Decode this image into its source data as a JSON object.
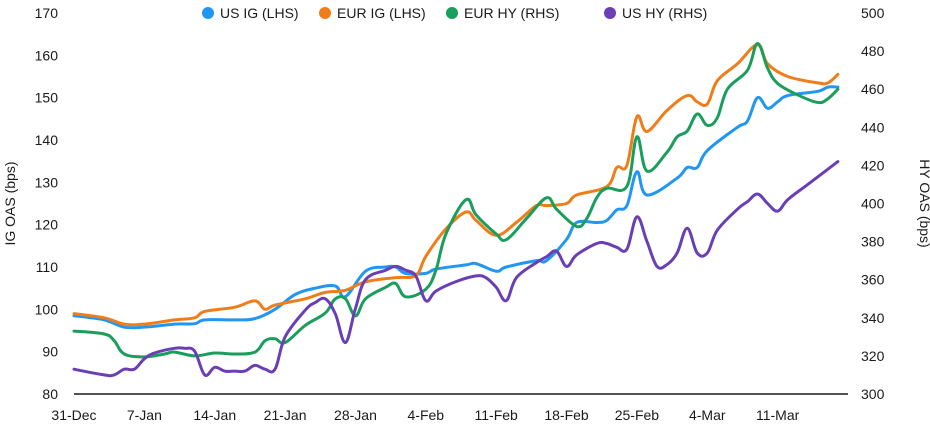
{
  "chart_data": {
    "type": "line",
    "x_labels": [
      "31-Dec",
      "7-Jan",
      "14-Jan",
      "21-Jan",
      "28-Jan",
      "4-Feb",
      "11-Feb",
      "18-Feb",
      "25-Feb",
      "4-Mar",
      "11-Mar"
    ],
    "x_range_days": [
      0,
      77
    ],
    "y_left": {
      "label": "IG OAS (bps)",
      "min": 80,
      "max": 170,
      "ticks": [
        80,
        90,
        100,
        110,
        120,
        130,
        140,
        150,
        160,
        170
      ]
    },
    "y_right": {
      "label": "HY OAS (bps)",
      "min": 300,
      "max": 500,
      "ticks": [
        300,
        320,
        340,
        360,
        380,
        400,
        420,
        440,
        460,
        480,
        500
      ]
    },
    "grid": false,
    "legend_position": "top",
    "series": [
      {
        "name": "US IG (LHS)",
        "axis": "left",
        "color": "#2196F3",
        "points": [
          [
            0,
            98.5
          ],
          [
            3,
            97.5
          ],
          [
            5,
            95.8
          ],
          [
            7,
            95.8
          ],
          [
            10,
            96.5
          ],
          [
            12,
            96.6
          ],
          [
            13,
            97.5
          ],
          [
            16,
            97.5
          ],
          [
            18,
            97.8
          ],
          [
            20,
            100
          ],
          [
            22,
            103.5
          ],
          [
            24,
            105
          ],
          [
            26,
            105.5
          ],
          [
            27,
            103
          ],
          [
            29,
            109
          ],
          [
            31,
            110
          ],
          [
            32,
            110
          ],
          [
            33,
            108.5
          ],
          [
            35,
            108.5
          ],
          [
            36,
            109.5
          ],
          [
            39,
            110.5
          ],
          [
            40,
            110.8
          ],
          [
            42,
            109
          ],
          [
            43,
            110
          ],
          [
            46,
            111.5
          ],
          [
            47,
            111.5
          ],
          [
            49,
            116.5
          ],
          [
            50,
            120.5
          ],
          [
            52,
            120.5
          ],
          [
            53,
            121
          ],
          [
            54,
            123.5
          ],
          [
            55,
            124.5
          ],
          [
            56,
            132.5
          ],
          [
            57,
            127
          ],
          [
            60,
            131
          ],
          [
            61,
            133.5
          ],
          [
            62,
            133.5
          ],
          [
            63,
            137.5
          ],
          [
            66,
            143
          ],
          [
            67,
            144.5
          ],
          [
            68,
            150
          ],
          [
            69,
            147.5
          ],
          [
            70,
            149
          ],
          [
            71,
            150.5
          ],
          [
            74,
            151.5
          ],
          [
            75,
            152.5
          ],
          [
            76,
            152.5
          ]
        ]
      },
      {
        "name": "EUR IG (LHS)",
        "axis": "left",
        "color": "#EF7D1A",
        "points": [
          [
            0,
            99
          ],
          [
            3,
            98
          ],
          [
            5,
            96.5
          ],
          [
            7,
            96.5
          ],
          [
            10,
            97.5
          ],
          [
            12,
            98
          ],
          [
            13,
            99.5
          ],
          [
            16,
            100.5
          ],
          [
            18,
            102
          ],
          [
            19,
            100
          ],
          [
            20,
            101
          ],
          [
            23,
            102.5
          ],
          [
            25,
            104
          ],
          [
            27,
            104.5
          ],
          [
            29,
            106.5
          ],
          [
            32,
            107.5
          ],
          [
            34,
            108
          ],
          [
            35,
            112.5
          ],
          [
            37,
            119
          ],
          [
            39,
            123
          ],
          [
            40,
            121
          ],
          [
            42,
            117.5
          ],
          [
            44,
            120.5
          ],
          [
            46,
            124.5
          ],
          [
            47,
            124.5
          ],
          [
            49,
            125
          ],
          [
            50,
            127
          ],
          [
            53,
            129
          ],
          [
            54,
            133.5
          ],
          [
            55,
            134
          ],
          [
            56,
            145.5
          ],
          [
            57,
            142
          ],
          [
            59,
            147
          ],
          [
            61,
            150.5
          ],
          [
            62,
            149
          ],
          [
            63,
            148.5
          ],
          [
            64,
            154
          ],
          [
            66,
            158
          ],
          [
            68,
            162.5
          ],
          [
            69,
            158
          ],
          [
            71,
            155
          ],
          [
            74,
            153.5
          ],
          [
            75,
            153.5
          ],
          [
            76,
            155.5
          ]
        ]
      },
      {
        "name": "EUR HY (RHS)",
        "axis": "right",
        "color": "#1A9E5C",
        "points": [
          [
            0,
            333
          ],
          [
            3,
            331.5
          ],
          [
            4,
            328
          ],
          [
            5,
            321
          ],
          [
            7,
            319.5
          ],
          [
            9,
            321
          ],
          [
            10,
            322
          ],
          [
            12,
            320
          ],
          [
            14,
            321.5
          ],
          [
            16,
            321
          ],
          [
            18,
            322
          ],
          [
            19,
            328
          ],
          [
            20,
            329
          ],
          [
            21,
            327
          ],
          [
            23,
            336
          ],
          [
            25,
            342.5
          ],
          [
            26,
            350
          ],
          [
            27,
            350
          ],
          [
            28,
            341
          ],
          [
            29,
            350
          ],
          [
            31,
            356
          ],
          [
            32,
            358
          ],
          [
            33,
            351
          ],
          [
            35,
            355
          ],
          [
            36,
            365
          ],
          [
            37,
            384
          ],
          [
            39,
            402
          ],
          [
            40,
            394
          ],
          [
            42,
            384
          ],
          [
            43,
            381
          ],
          [
            45,
            392
          ],
          [
            47,
            403
          ],
          [
            48,
            397
          ],
          [
            50,
            388
          ],
          [
            51,
            392
          ],
          [
            52,
            403
          ],
          [
            53,
            408
          ],
          [
            55,
            409
          ],
          [
            56,
            435
          ],
          [
            57,
            417
          ],
          [
            59,
            427
          ],
          [
            60,
            435
          ],
          [
            61,
            438
          ],
          [
            62,
            447
          ],
          [
            63,
            441
          ],
          [
            64,
            445
          ],
          [
            65,
            460
          ],
          [
            67,
            470
          ],
          [
            68,
            484
          ],
          [
            69,
            471
          ],
          [
            70,
            463
          ],
          [
            72,
            457
          ],
          [
            74,
            453
          ],
          [
            75,
            455
          ],
          [
            76,
            460
          ]
        ]
      },
      {
        "name": "US HY (RHS)",
        "axis": "right",
        "color": "#6A3FB5",
        "points": [
          [
            0,
            313
          ],
          [
            3,
            310
          ],
          [
            4,
            310
          ],
          [
            5,
            313
          ],
          [
            6,
            313
          ],
          [
            7,
            318.5
          ],
          [
            8,
            321.5
          ],
          [
            10,
            324
          ],
          [
            11,
            324
          ],
          [
            12,
            322.5
          ],
          [
            13,
            310
          ],
          [
            14,
            314
          ],
          [
            15,
            312
          ],
          [
            16,
            312
          ],
          [
            17,
            312
          ],
          [
            18,
            315
          ],
          [
            19,
            313
          ],
          [
            20,
            313
          ],
          [
            21,
            330
          ],
          [
            23,
            344
          ],
          [
            24,
            348
          ],
          [
            25,
            350
          ],
          [
            26,
            342
          ],
          [
            27,
            327
          ],
          [
            28,
            345
          ],
          [
            29,
            360
          ],
          [
            31,
            365
          ],
          [
            32,
            367
          ],
          [
            33,
            365
          ],
          [
            34,
            362
          ],
          [
            35,
            349
          ],
          [
            36,
            354
          ],
          [
            38,
            359
          ],
          [
            40,
            362
          ],
          [
            41,
            361
          ],
          [
            42,
            356
          ],
          [
            43,
            349
          ],
          [
            44,
            361
          ],
          [
            46,
            369
          ],
          [
            47,
            372
          ],
          [
            48,
            375
          ],
          [
            49,
            367
          ],
          [
            50,
            373
          ],
          [
            52,
            379
          ],
          [
            53,
            379
          ],
          [
            54,
            377
          ],
          [
            55,
            376
          ],
          [
            56,
            393
          ],
          [
            57,
            380
          ],
          [
            58,
            367
          ],
          [
            59,
            368
          ],
          [
            60,
            374
          ],
          [
            61,
            387
          ],
          [
            62,
            374
          ],
          [
            63,
            374
          ],
          [
            64,
            386
          ],
          [
            66,
            397
          ],
          [
            67,
            401
          ],
          [
            68,
            405
          ],
          [
            69,
            400
          ],
          [
            70,
            396
          ],
          [
            71,
            402
          ],
          [
            73,
            410
          ],
          [
            75,
            418
          ],
          [
            76,
            422
          ]
        ]
      }
    ]
  }
}
